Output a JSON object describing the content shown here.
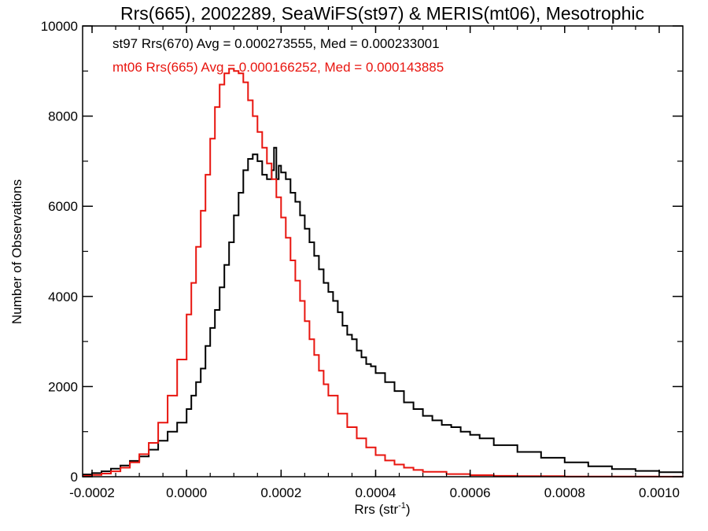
{
  "chart_data": {
    "type": "line",
    "title": "Rrs(665), 2002289, SeaWiFS(st97) & MERIS(mt06), Mesotrophic",
    "xlabel_base": "Rrs (str",
    "xlabel_sup": "-1",
    "xlabel_end": ")",
    "ylabel": "Number of Observations",
    "xlim": [
      -0.00022,
      0.00105
    ],
    "ylim": [
      0,
      10000
    ],
    "x_ticks": [
      -0.0002,
      0.0,
      0.0002,
      0.0004,
      0.0006,
      0.0008,
      0.001
    ],
    "x_tick_labels": [
      "-0.0002",
      "0.0000",
      "0.0002",
      "0.0004",
      "0.0006",
      "0.0008",
      "0.0010"
    ],
    "y_ticks": [
      0,
      2000,
      4000,
      6000,
      8000,
      10000
    ],
    "y_tick_labels": [
      "0",
      "2000",
      "4000",
      "6000",
      "8000",
      "10000"
    ],
    "step": true,
    "grid": false,
    "annotations": [
      {
        "text": "st97 Rrs(670) Avg = 0.000273555, Med = 0.000233001",
        "color": "#000000"
      },
      {
        "text": "mt06 Rrs(665) Avg = 0.000166252, Med = 0.000143885",
        "color": "#e8150f"
      }
    ],
    "series": [
      {
        "color": "#000000",
        "x": [
          -0.00022,
          -0.0002,
          -0.00018,
          -0.00016,
          -0.00014,
          -0.00012,
          -0.0001,
          -8e-05,
          -6e-05,
          -4e-05,
          -2e-05,
          0.0,
          1e-05,
          2e-05,
          3e-05,
          4e-05,
          5e-05,
          6e-05,
          7e-05,
          8e-05,
          9e-05,
          0.0001,
          0.00011,
          0.00012,
          0.00013,
          0.00014,
          0.00015,
          0.00016,
          0.00017,
          0.00018,
          0.000185,
          0.00019,
          0.000195,
          0.0002,
          0.00021,
          0.00022,
          0.00023,
          0.00024,
          0.00025,
          0.00026,
          0.00027,
          0.00028,
          0.00029,
          0.0003,
          0.00031,
          0.00032,
          0.00033,
          0.00034,
          0.00035,
          0.00036,
          0.00037,
          0.00038,
          0.00039,
          0.0004,
          0.00042,
          0.00044,
          0.00046,
          0.00048,
          0.0005,
          0.00052,
          0.00054,
          0.00056,
          0.00058,
          0.0006,
          0.00062,
          0.00065,
          0.0007,
          0.00075,
          0.0008,
          0.00085,
          0.0009,
          0.00095,
          0.001,
          0.00105
        ],
        "y": [
          50,
          80,
          120,
          180,
          250,
          350,
          450,
          600,
          800,
          1000,
          1200,
          1500,
          1800,
          2100,
          2400,
          2900,
          3300,
          3700,
          4200,
          4700,
          5200,
          5800,
          6300,
          6800,
          7050,
          7150,
          7000,
          6700,
          6600,
          6800,
          7300,
          6600,
          6900,
          6750,
          6600,
          6300,
          6100,
          5800,
          5500,
          5200,
          4900,
          4600,
          4300,
          4100,
          3900,
          3650,
          3350,
          3150,
          3050,
          2800,
          2650,
          2500,
          2450,
          2300,
          2100,
          1900,
          1650,
          1500,
          1350,
          1250,
          1150,
          1100,
          1000,
          930,
          850,
          700,
          550,
          420,
          320,
          230,
          170,
          130,
          100,
          70
        ]
      },
      {
        "color": "#e8150f",
        "x": [
          -0.00022,
          -0.0002,
          -0.00018,
          -0.00016,
          -0.00014,
          -0.00012,
          -0.0001,
          -8e-05,
          -6e-05,
          -4e-05,
          -2e-05,
          0.0,
          1e-05,
          2e-05,
          3e-05,
          4e-05,
          5e-05,
          6e-05,
          7e-05,
          8e-05,
          9e-05,
          0.0001,
          0.00011,
          0.00012,
          0.00013,
          0.00014,
          0.00015,
          0.00016,
          0.00017,
          0.00018,
          0.00019,
          0.0002,
          0.00021,
          0.00022,
          0.00023,
          0.00024,
          0.00025,
          0.00026,
          0.00027,
          0.00028,
          0.00029,
          0.0003,
          0.00032,
          0.00034,
          0.00036,
          0.00038,
          0.0004,
          0.00042,
          0.00044,
          0.00046,
          0.00048,
          0.0005,
          0.00055,
          0.0006,
          0.00065,
          0.0007,
          0.0008,
          0.0009,
          0.001,
          0.00105
        ],
        "y": [
          20,
          40,
          70,
          120,
          200,
          320,
          500,
          750,
          1200,
          1800,
          2600,
          3600,
          4300,
          5100,
          5900,
          6700,
          7500,
          8200,
          8700,
          8950,
          9050,
          9000,
          8950,
          8750,
          8350,
          8000,
          7650,
          7300,
          6950,
          6600,
          6200,
          5750,
          5300,
          4800,
          4350,
          3900,
          3450,
          3050,
          2700,
          2350,
          2050,
          1800,
          1400,
          1100,
          850,
          650,
          480,
          360,
          270,
          200,
          150,
          110,
          60,
          35,
          20,
          12,
          6,
          3,
          1,
          0
        ]
      }
    ]
  }
}
